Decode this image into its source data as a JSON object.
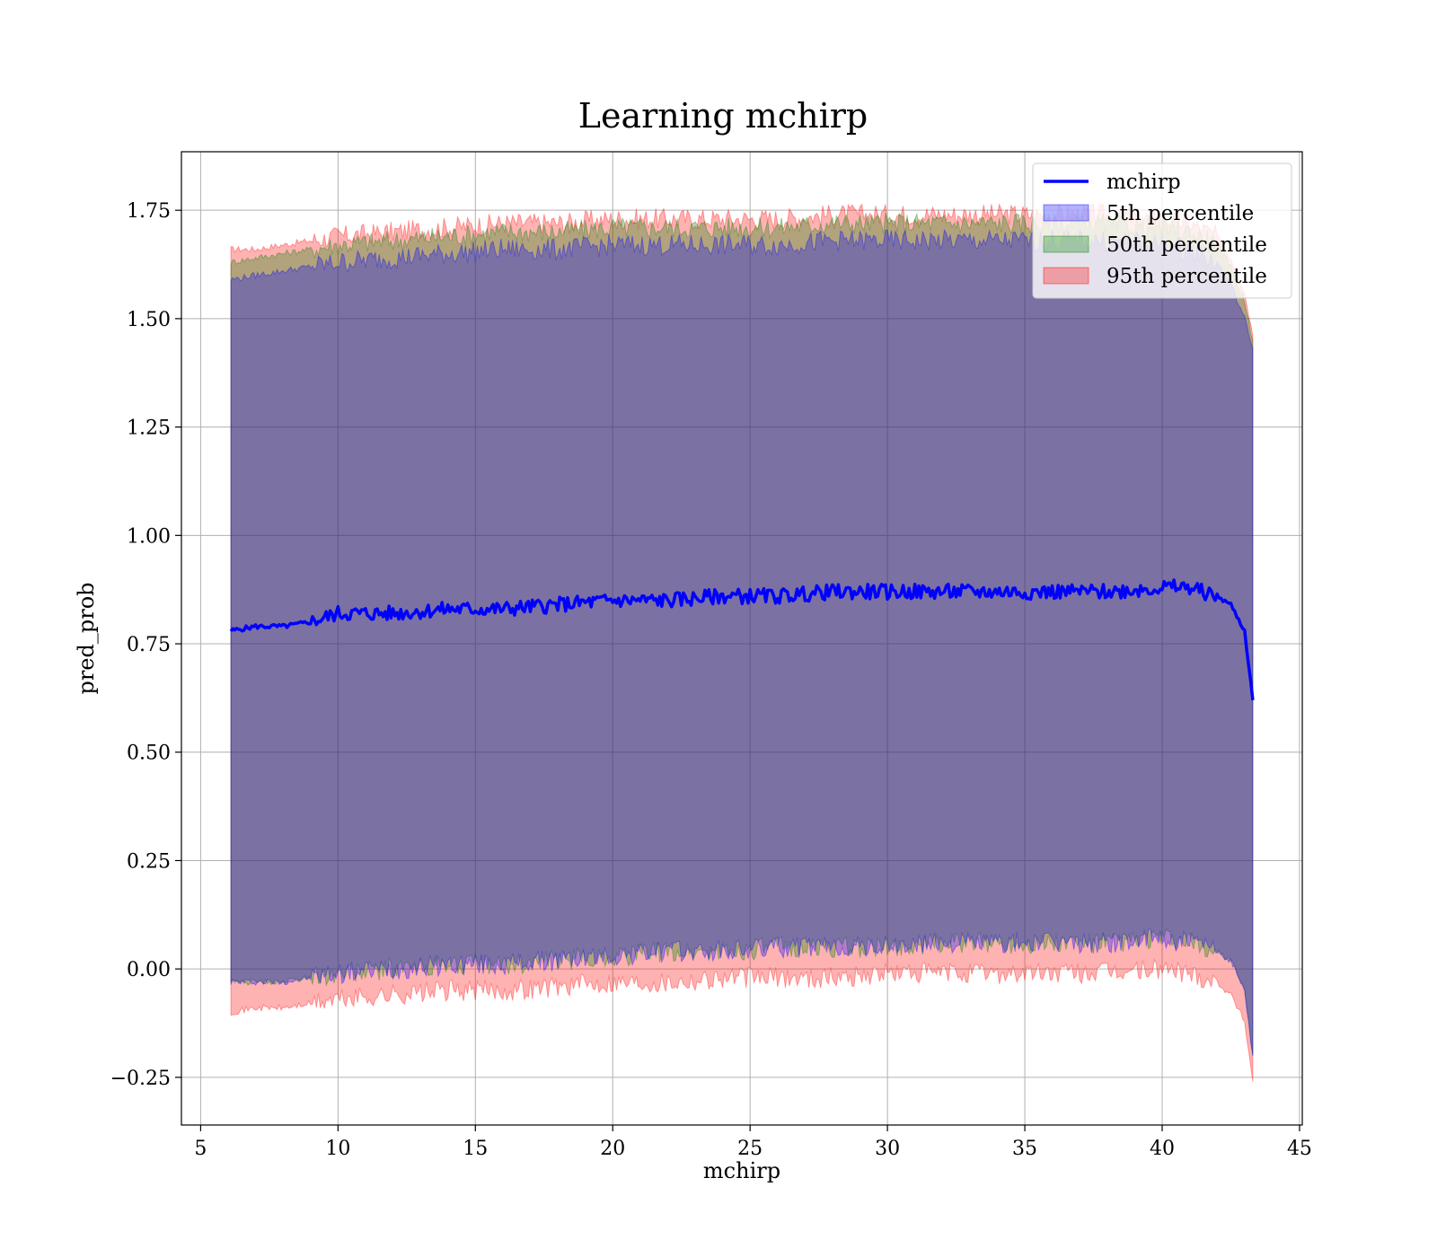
{
  "chart_data": {
    "type": "area",
    "title": "Learning mchirp",
    "xlabel": "mchirp",
    "ylabel": "pred_prob",
    "xlim": [
      4.3,
      45.1
    ],
    "ylim": [
      -0.36,
      1.885
    ],
    "xticks": [
      5,
      10,
      15,
      20,
      25,
      30,
      35,
      40,
      45
    ],
    "yticks": [
      -0.25,
      0.0,
      0.25,
      0.5,
      0.75,
      1.0,
      1.25,
      1.5,
      1.75
    ],
    "ytick_labels": [
      "−0.25",
      "0.00",
      "0.25",
      "0.50",
      "0.75",
      "1.00",
      "1.25",
      "1.50",
      "1.75"
    ],
    "grid": true,
    "legend_position": "upper right",
    "x": [
      6.1,
      7,
      8,
      9,
      10,
      12,
      14,
      16,
      18,
      20,
      22,
      24,
      26,
      28,
      30,
      32,
      34,
      36,
      38,
      40,
      41,
      42,
      42.5,
      43,
      43.3
    ],
    "series": [
      {
        "name": "mchirp",
        "kind": "line",
        "color": "#0000ff",
        "values": [
          0.78,
          0.79,
          0.79,
          0.8,
          0.82,
          0.82,
          0.83,
          0.83,
          0.84,
          0.85,
          0.85,
          0.86,
          0.86,
          0.87,
          0.87,
          0.87,
          0.87,
          0.87,
          0.87,
          0.88,
          0.88,
          0.86,
          0.84,
          0.78,
          0.62
        ]
      },
      {
        "name": "5th percentile",
        "kind": "band",
        "color": "#0000ff",
        "lower": [
          -0.03,
          -0.03,
          -0.03,
          -0.02,
          -0.01,
          0.0,
          0.01,
          0.01,
          0.02,
          0.03,
          0.04,
          0.04,
          0.05,
          0.05,
          0.05,
          0.06,
          0.06,
          0.06,
          0.06,
          0.07,
          0.06,
          0.04,
          0.02,
          -0.05,
          -0.2
        ],
        "upper": [
          1.59,
          1.6,
          1.61,
          1.62,
          1.63,
          1.64,
          1.65,
          1.66,
          1.66,
          1.67,
          1.67,
          1.67,
          1.67,
          1.68,
          1.68,
          1.68,
          1.68,
          1.68,
          1.68,
          1.67,
          1.66,
          1.63,
          1.58,
          1.5,
          1.43
        ]
      },
      {
        "name": "50th percentile",
        "kind": "band",
        "color": "#008000",
        "lower": [
          -0.03,
          -0.03,
          -0.03,
          -0.02,
          -0.01,
          0.0,
          0.01,
          0.01,
          0.02,
          0.03,
          0.04,
          0.04,
          0.05,
          0.05,
          0.05,
          0.06,
          0.06,
          0.06,
          0.06,
          0.07,
          0.06,
          0.04,
          0.02,
          -0.05,
          -0.2
        ],
        "upper": [
          1.63,
          1.64,
          1.65,
          1.66,
          1.67,
          1.68,
          1.69,
          1.7,
          1.7,
          1.71,
          1.71,
          1.71,
          1.71,
          1.72,
          1.72,
          1.72,
          1.72,
          1.72,
          1.72,
          1.71,
          1.7,
          1.67,
          1.62,
          1.54,
          1.45
        ]
      },
      {
        "name": "95th percentile",
        "kind": "band",
        "color": "#ff0000",
        "lower": [
          -0.1,
          -0.09,
          -0.09,
          -0.08,
          -0.07,
          -0.06,
          -0.05,
          -0.05,
          -0.04,
          -0.03,
          -0.03,
          -0.02,
          -0.02,
          -0.02,
          -0.01,
          -0.01,
          -0.01,
          -0.01,
          -0.01,
          0.0,
          -0.01,
          -0.03,
          -0.06,
          -0.12,
          -0.26
        ],
        "upper": [
          1.66,
          1.66,
          1.67,
          1.68,
          1.69,
          1.7,
          1.71,
          1.72,
          1.72,
          1.73,
          1.73,
          1.73,
          1.73,
          1.74,
          1.74,
          1.74,
          1.74,
          1.74,
          1.74,
          1.73,
          1.72,
          1.69,
          1.64,
          1.56,
          1.46
        ]
      }
    ]
  }
}
